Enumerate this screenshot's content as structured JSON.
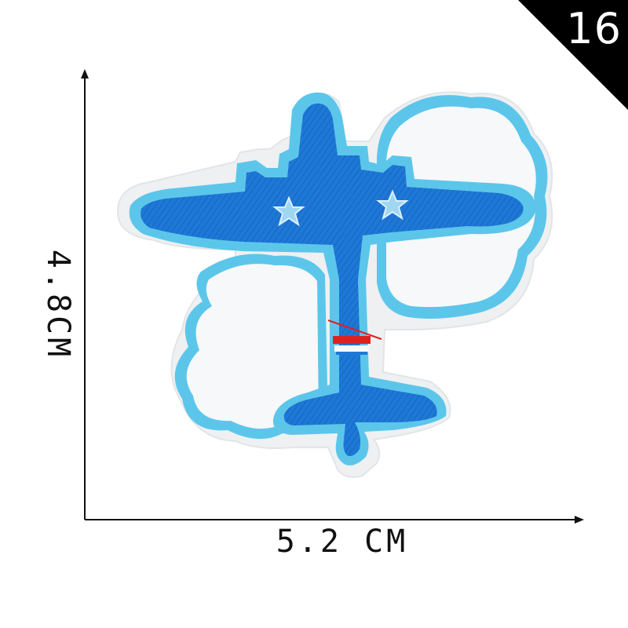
{
  "badge": {
    "number": "16",
    "color": "#000000"
  },
  "dimensions": {
    "height_label": "4.8CM",
    "width_label": "5.2 CM"
  },
  "patch": {
    "subject": "airplane-with-clouds-embroidered-patch",
    "colors": {
      "plane_blue": "#1f78d6",
      "border_light_blue": "#5cc6ea",
      "cloud_white": "#f7f8fa",
      "felt_backing": "#eef0f2",
      "stripe_red": "#e02020"
    }
  }
}
